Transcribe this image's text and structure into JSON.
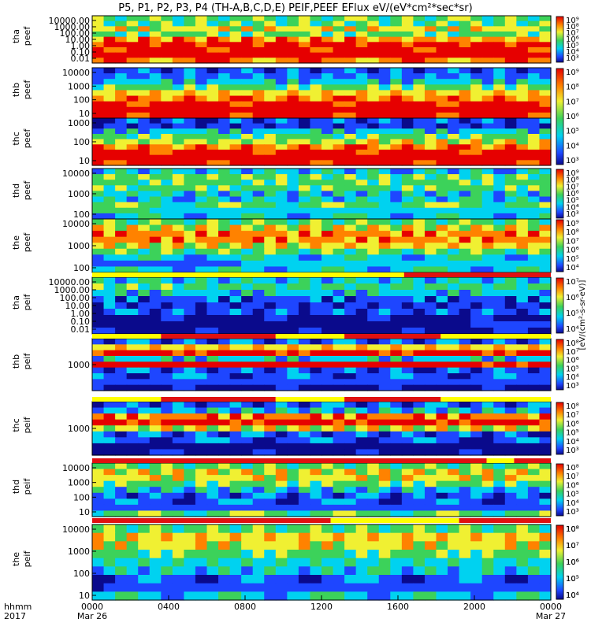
{
  "title": "P5, P1, P2, P3, P4 (TH-A,B,C,D,E) PEIF,PEEF EFlux eV/(eV*cm²*sec*sr)",
  "colorbar_label": "[eV/(cm²-s-sr-eV)]",
  "xaxis": {
    "corner_top": "hhmm",
    "corner_bottom": "2017",
    "ticks": [
      "0000",
      "0400",
      "0800",
      "1200",
      "1600",
      "2000",
      "0000"
    ],
    "dates": [
      "Mar 26",
      "Mar 27"
    ]
  },
  "colors": {
    "dark_blue": "#0a0a8c",
    "blue": "#1e46ff",
    "cyan": "#00d2f0",
    "green": "#3cd25a",
    "yellow": "#f0f032",
    "orange": "#ff8200",
    "red": "#e60000",
    "bar_red": "#e01010",
    "bar_yellow": "#ffff00"
  },
  "panels": [
    {
      "label1": "tha",
      "label2": "peef",
      "yticks": [
        "10000.00",
        "1000.00",
        "100.00",
        "10.00",
        "1.00",
        "0.10",
        "0.01"
      ],
      "cbar_ticks": [
        "10⁹",
        "10⁸",
        "10⁷",
        "10⁶",
        "10⁵",
        "10⁴",
        "10³"
      ]
    },
    {
      "label1": "thb",
      "label2": "peef",
      "yticks": [
        "10000",
        "1000",
        "100",
        "10"
      ],
      "cbar_ticks": [
        "10⁹",
        "10⁸",
        "10⁷",
        "10⁶",
        "10⁵",
        "10⁴",
        "10³"
      ]
    },
    {
      "label1": "thc",
      "label2": "peef",
      "yticks": [
        "1000",
        "100",
        "10"
      ],
      "cbar_ticks": [
        "10⁹",
        "10⁸",
        "10⁷",
        "10⁶",
        "10⁵",
        "10⁴",
        "10³"
      ]
    },
    {
      "label1": "thd",
      "label2": "peef",
      "yticks": [
        "10000",
        "1000",
        "100"
      ],
      "cbar_ticks": [
        "10⁹",
        "10⁸",
        "10⁷",
        "10⁶",
        "10⁵",
        "10⁴"
      ]
    },
    {
      "label1": "the",
      "label2": "peef",
      "yticks": [
        "10000",
        "1000",
        "100"
      ],
      "cbar_ticks": [
        "10⁷",
        "10⁶",
        "10⁵",
        "10⁴"
      ]
    },
    {
      "label1": "tha",
      "label2": "peif",
      "yticks": [
        "10000.00",
        "1000.00",
        "100.00",
        "10.00",
        "1.00",
        "0.10",
        "0.01"
      ],
      "cbar_ticks": [
        "10⁸",
        "10⁷",
        "10⁶",
        "10⁵",
        "10⁴",
        "10³"
      ]
    },
    {
      "label1": "thb",
      "label2": "peif",
      "yticks": [
        "1000"
      ],
      "cbar_ticks": [
        "10⁸",
        "10⁷",
        "10⁶",
        "10⁵",
        "10⁴",
        "10³"
      ]
    },
    {
      "label1": "thc",
      "label2": "peif",
      "yticks": [
        "1000"
      ],
      "cbar_ticks": [
        "10⁸",
        "10⁷",
        "10⁶",
        "10⁵",
        "10⁴",
        "10³"
      ]
    },
    {
      "label1": "thd",
      "label2": "peif",
      "yticks": [
        "10000",
        "1000",
        "100",
        "10"
      ],
      "cbar_ticks": [
        "10⁸",
        "10⁷",
        "10⁶",
        "10⁵",
        "10⁴"
      ]
    },
    {
      "label1": "the",
      "label2": "peif",
      "yticks": [
        "10000",
        "1000",
        "100",
        "10"
      ],
      "cbar_ticks": [
        "10⁸",
        "10⁷",
        "10⁶",
        "10⁵",
        "10⁴"
      ]
    }
  ],
  "chart_data": {
    "type": "heatmap",
    "title": "P5, P1, P2, P3, P4 (TH-A,B,C,D,E) PEIF,PEEF EFlux eV/(eV*cm²*sec*sr)",
    "xlabel": "hhmm",
    "x_range": [
      "2017-03-26 00:00",
      "2017-03-27 00:00"
    ],
    "yscale": "log",
    "zscale": "log",
    "colormap": "rainbow (blue-low to red-high)",
    "series": [
      {
        "name": "tha peef",
        "ylim": [
          0.01,
          20000
        ]
      },
      {
        "name": "thb peef",
        "ylim": [
          5,
          15000
        ]
      },
      {
        "name": "thc peef",
        "ylim": [
          5,
          5000
        ]
      },
      {
        "name": "thd peef",
        "ylim": [
          20,
          20000
        ]
      },
      {
        "name": "the peef",
        "ylim": [
          20,
          20000
        ]
      },
      {
        "name": "tha peif",
        "ylim": [
          0.01,
          20000
        ]
      },
      {
        "name": "thb peif",
        "ylim": [
          100,
          10000
        ]
      },
      {
        "name": "thc peif",
        "ylim": [
          100,
          10000
        ]
      },
      {
        "name": "thd peif",
        "ylim": [
          5,
          20000
        ]
      },
      {
        "name": "the peif",
        "ylim": [
          5,
          20000
        ]
      }
    ]
  }
}
